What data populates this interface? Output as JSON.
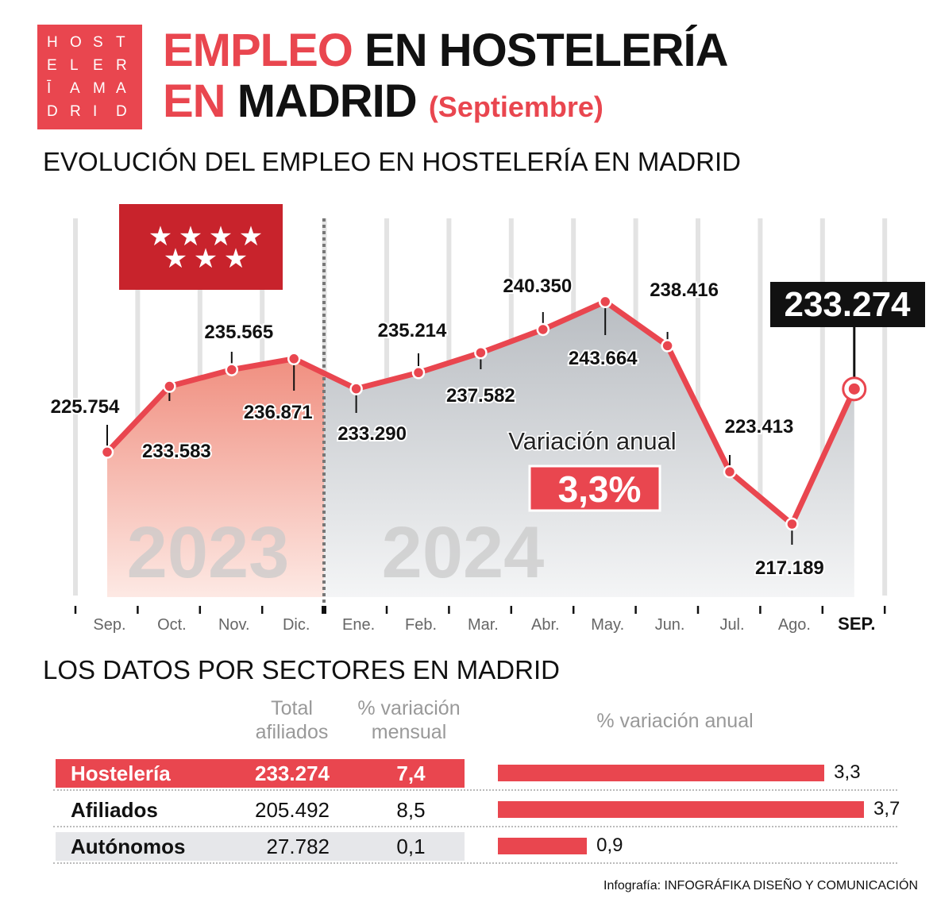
{
  "logo": {
    "letters": [
      "H",
      "O",
      "S",
      "T",
      "E",
      "L",
      "E",
      "R",
      "Ī",
      "A",
      "M",
      "A",
      "D",
      "R",
      "I",
      "D"
    ]
  },
  "header": {
    "title_red_1": "EMPLEO",
    "title_black_1": "EN HOSTELERÍA",
    "title_red_2": "EN",
    "title_black_2": "MADRID",
    "subtitle": "(Septiembre)"
  },
  "colors": {
    "accent": "#e9464f",
    "flag_red": "#c8232c",
    "area_2024": "#d3d6da",
    "area_2023": "#f3a699"
  },
  "chart_data": [
    {
      "type": "area",
      "title": "EVOLUCIÓN DEL EMPLEO EN HOSTELERÍA EN MADRID",
      "categories": [
        "Sep.",
        "Oct.",
        "Nov.",
        "Dic.",
        "Ene.",
        "Feb.",
        "Mar.",
        "Abr.",
        "May.",
        "Jun.",
        "Jul.",
        "Ago.",
        "SEP."
      ],
      "values": [
        225.754,
        233.583,
        235.565,
        236.871,
        233.29,
        235.214,
        237.582,
        240.35,
        243.664,
        238.416,
        223.413,
        217.189,
        233.274
      ],
      "value_labels": [
        "225.754",
        "233.583",
        "235.565",
        "236.871",
        "233.290",
        "235.214",
        "237.582",
        "240.350",
        "243.664",
        "238.416",
        "223.413",
        "217.189",
        "233.274"
      ],
      "year_labels": [
        "2023",
        "2024"
      ],
      "annotation": {
        "label": "Variación anual",
        "value": "3,3%"
      },
      "grid": true,
      "xlabel": "",
      "ylabel": ""
    },
    {
      "type": "bar",
      "title": "LOS DATOS POR SECTORES EN MADRID",
      "column_headers": {
        "total_1": "Total",
        "total_2": "afiliados",
        "mensual_1": "% variación",
        "mensual_2": "mensual",
        "anual": "% variación anual"
      },
      "rows": [
        {
          "sector": "Hostelería",
          "total": "233.274",
          "mensual": "7,4",
          "anual": 3.3,
          "anual_label": "3,3"
        },
        {
          "sector": "Afiliados",
          "total": "205.492",
          "mensual": "8,5",
          "anual": 3.7,
          "anual_label": "3,7"
        },
        {
          "sector": "Autónomos",
          "total": "27.782",
          "mensual": "0,1",
          "anual": 0.9,
          "anual_label": "0,9"
        }
      ]
    }
  ],
  "credit": "Infografía: INFOGRÁFIKA DISEÑO Y COMUNICACIÓN"
}
